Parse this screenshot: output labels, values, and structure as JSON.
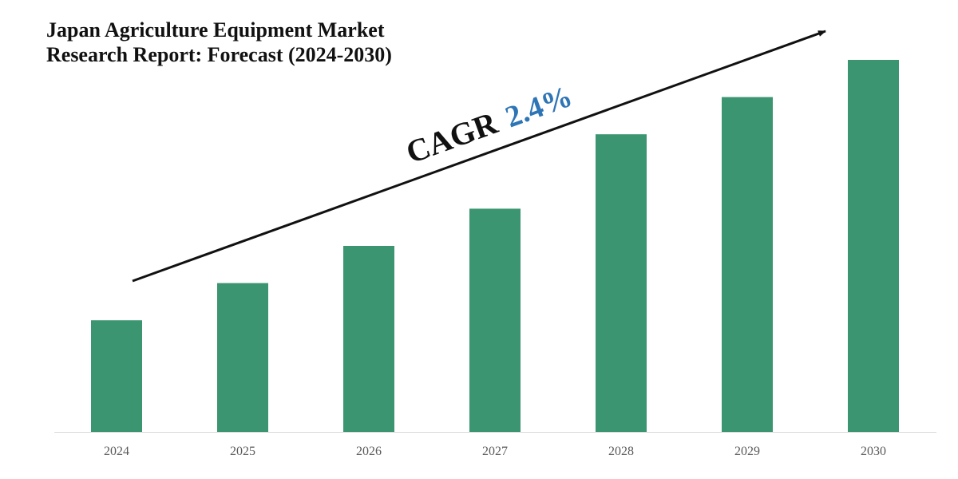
{
  "title_lines": [
    "Japan Agriculture Equipment Market",
    "Research Report: Forecast (2024-2030)"
  ],
  "colors": {
    "bar": "#3a9570",
    "axis": "#d9d9d9",
    "cagr_label": "#111111",
    "cagr_value": "#2e75b6",
    "arrow": "#111111"
  },
  "annotation": {
    "label": "CAGR",
    "value": "2.4%"
  },
  "chart_data": {
    "type": "bar",
    "title": "Japan Agriculture Equipment Market Research Report: Forecast (2024-2030)",
    "categories": [
      "2024",
      "2025",
      "2026",
      "2027",
      "2028",
      "2029",
      "2030"
    ],
    "values": [
      30,
      40,
      50,
      60,
      80,
      90,
      100
    ],
    "ylim": [
      0,
      100
    ],
    "value_unit": "relative (no axis values printed)",
    "grid": false,
    "legend": "none",
    "annotations": [
      "CAGR 2.4%",
      "upward trend arrow"
    ]
  }
}
